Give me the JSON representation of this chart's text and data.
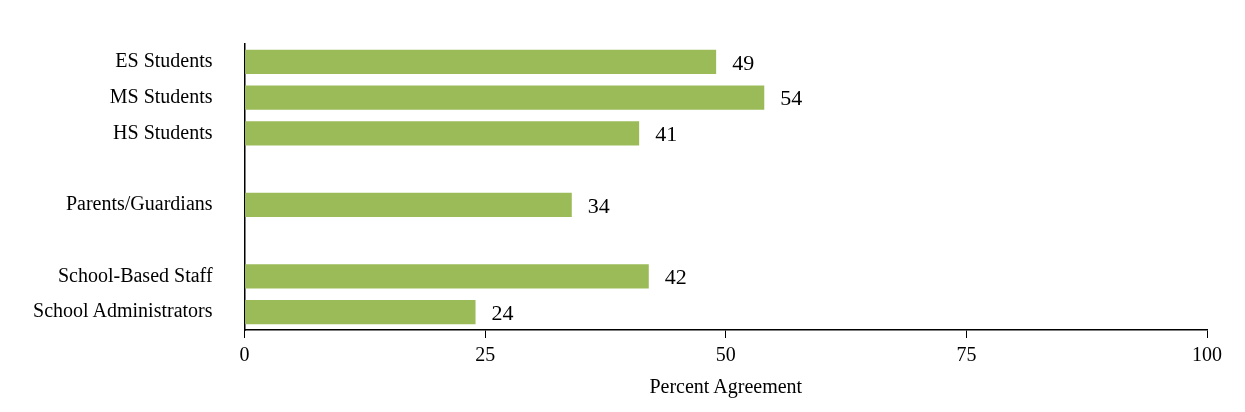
{
  "chart_data": {
    "type": "bar",
    "orientation": "horizontal",
    "xlabel": "Percent Agreement",
    "categories": [
      "ES Students",
      "MS Students",
      "HS Students",
      null,
      "Parents/Guardians",
      null,
      "School-Based Staff",
      "School Administrators"
    ],
    "values": [
      49,
      54,
      41,
      null,
      34,
      null,
      42,
      24
    ],
    "color": "#9bbb59",
    "xlim": [
      0,
      100
    ],
    "xticks": [
      0,
      25,
      50,
      75,
      100
    ],
    "data_labels": true,
    "grid": false,
    "legend": false
  }
}
